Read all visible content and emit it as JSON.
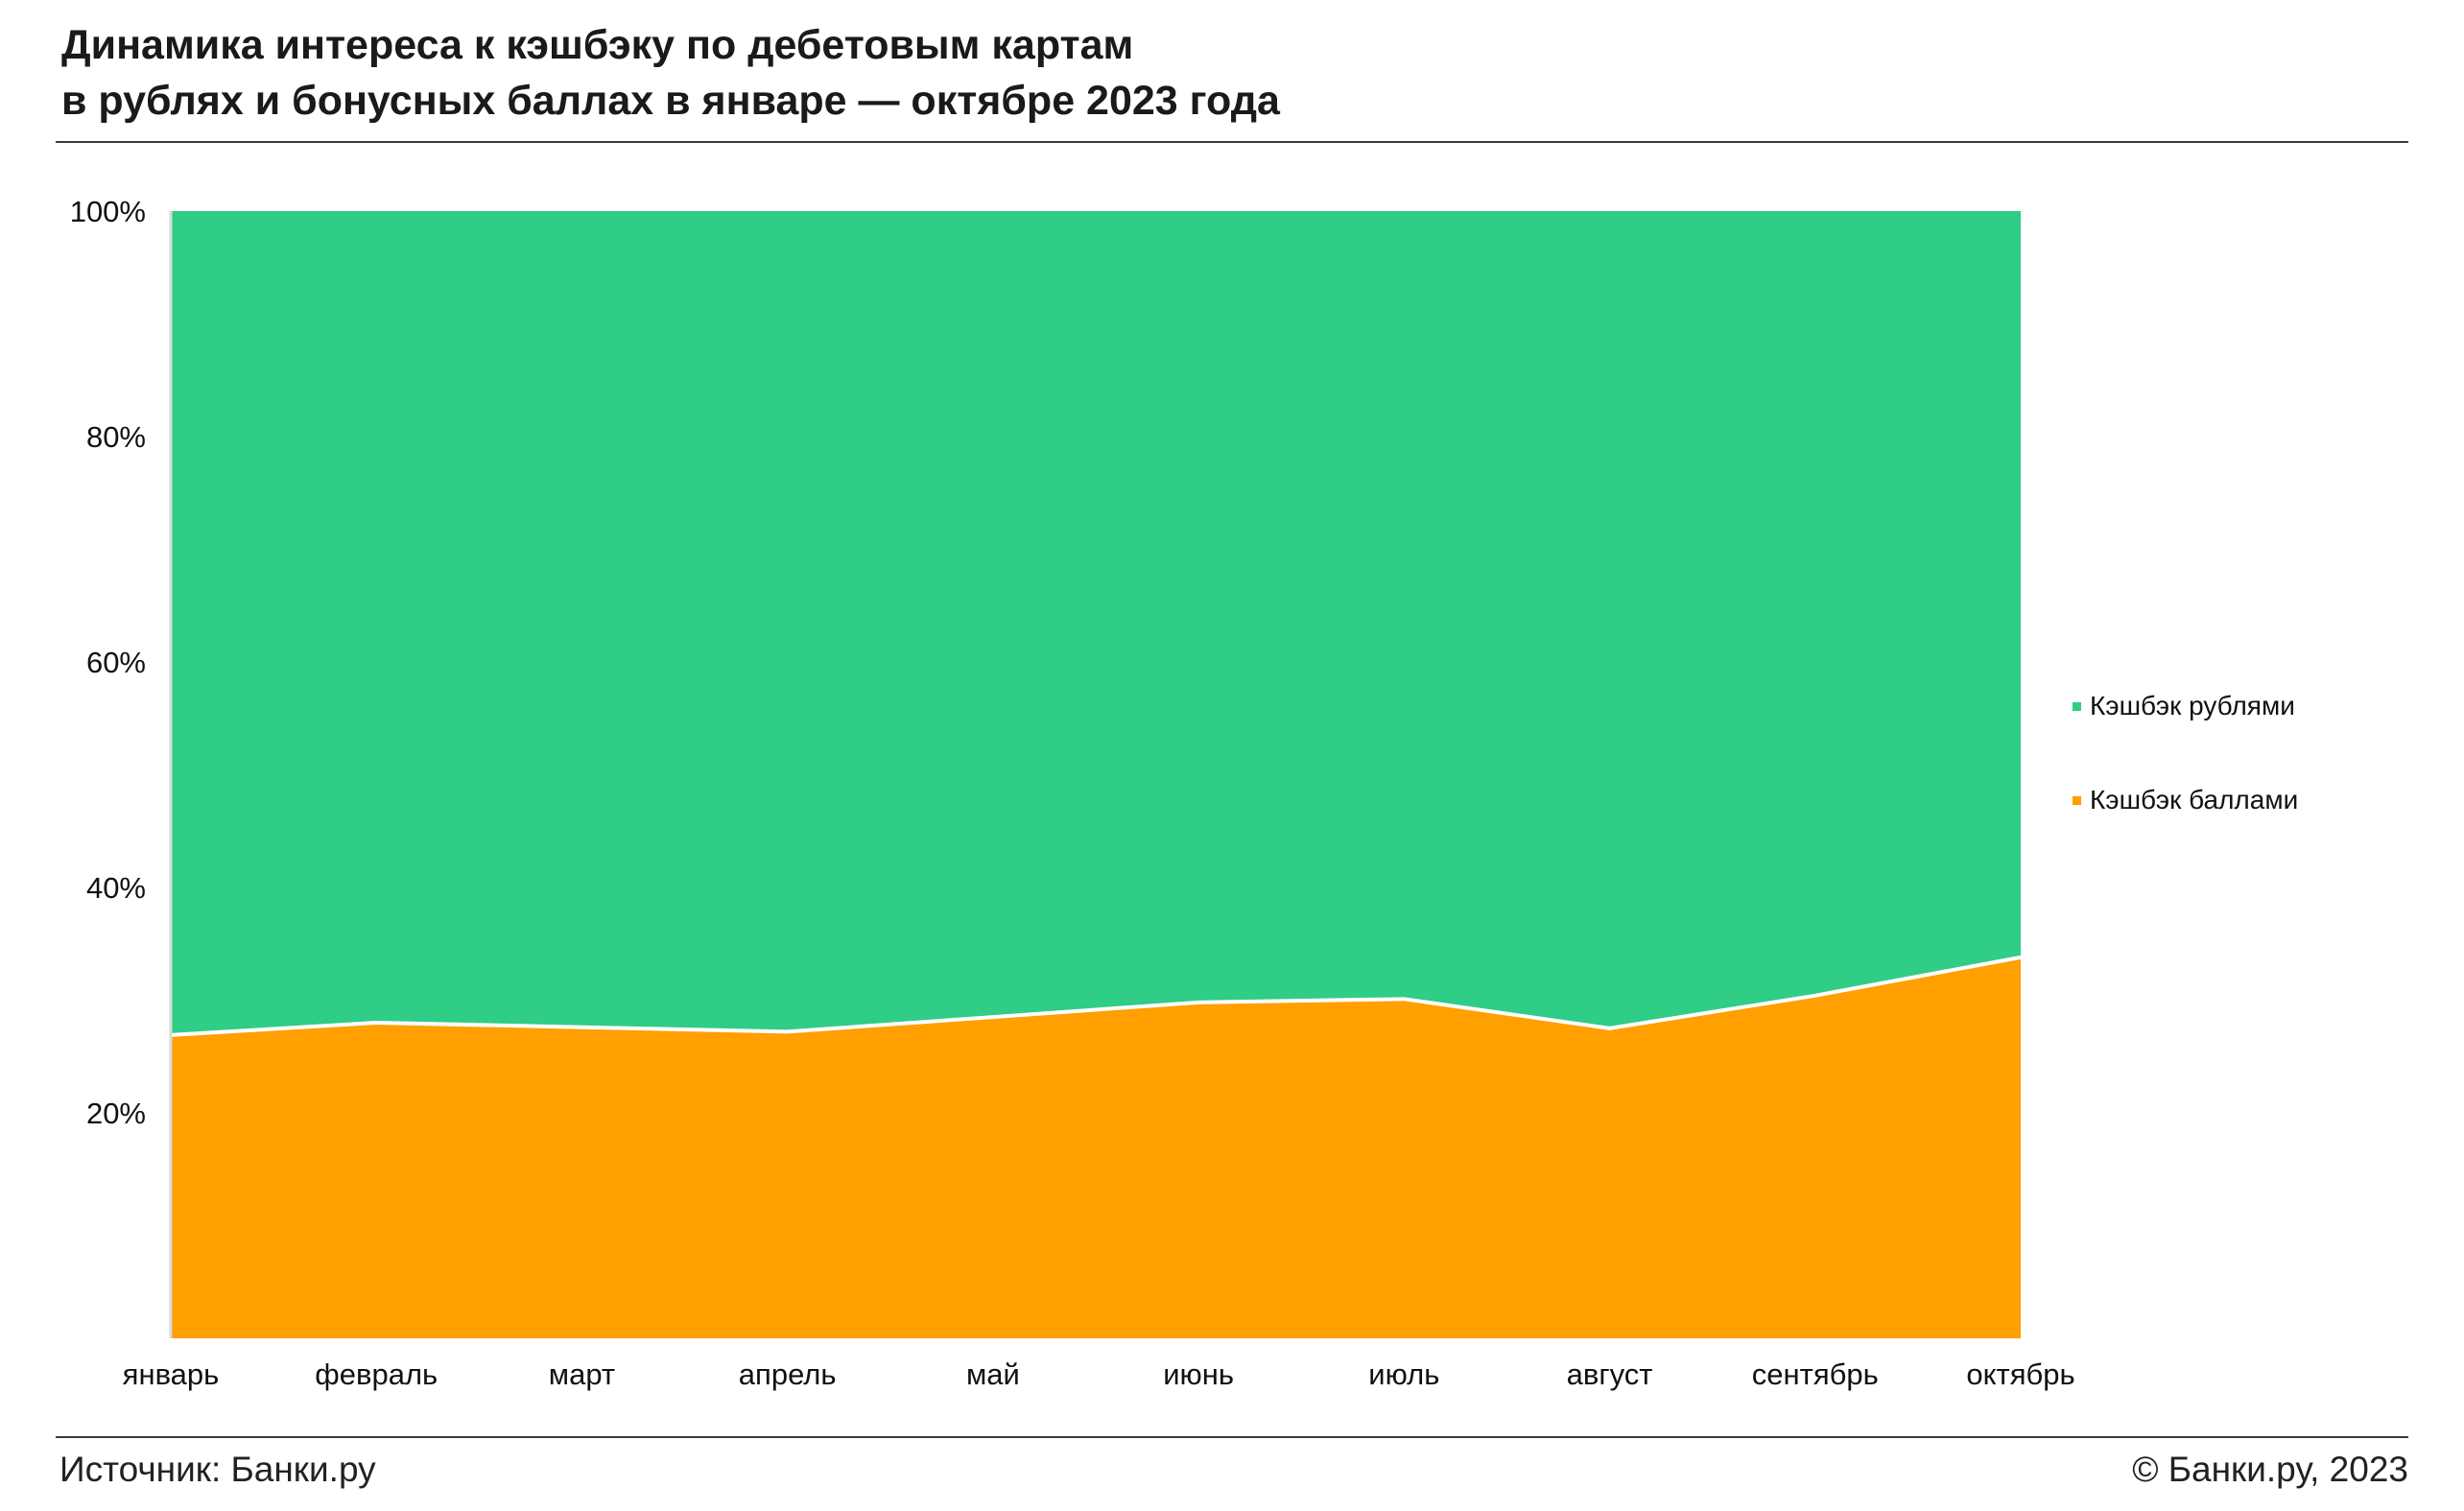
{
  "title": {
    "line1": "Динамика интереса к кэшбэку по дебетовым картам",
    "line2": "в рублях и бонусных баллах в январе — октябре 2023 года"
  },
  "footer": {
    "source": "Источник: Банки.ру",
    "copyright": "© Банки.ру, 2023"
  },
  "chart_data": {
    "type": "area",
    "stacked": "percent",
    "categories": [
      "январь",
      "февраль",
      "март",
      "апрель",
      "май",
      "июнь",
      "июль",
      "август",
      "сентябрь",
      "октябрь"
    ],
    "y_ticks": [
      20,
      40,
      60,
      80,
      100
    ],
    "y_tick_labels": [
      "20%",
      "40%",
      "60%",
      "80%",
      "100%"
    ],
    "ylim": [
      0,
      100
    ],
    "grid": false,
    "legend_position": "right",
    "series": [
      {
        "name": "Кэшбэк баллами",
        "color": "#ff9f00",
        "values": [
          26.9,
          28.0,
          27.6,
          27.2,
          28.5,
          29.8,
          30.1,
          27.5,
          30.4,
          33.8
        ]
      },
      {
        "name": "Кэшбэк рублями",
        "color": "#30cd86",
        "values": [
          73.1,
          72.0,
          72.4,
          72.8,
          71.5,
          70.2,
          69.9,
          72.5,
          69.6,
          66.2
        ]
      }
    ],
    "legend": [
      {
        "label": "Кэшбэк рублями",
        "color": "#30cd86"
      },
      {
        "label": "Кэшбэк баллами",
        "color": "#ff9f00"
      }
    ]
  }
}
